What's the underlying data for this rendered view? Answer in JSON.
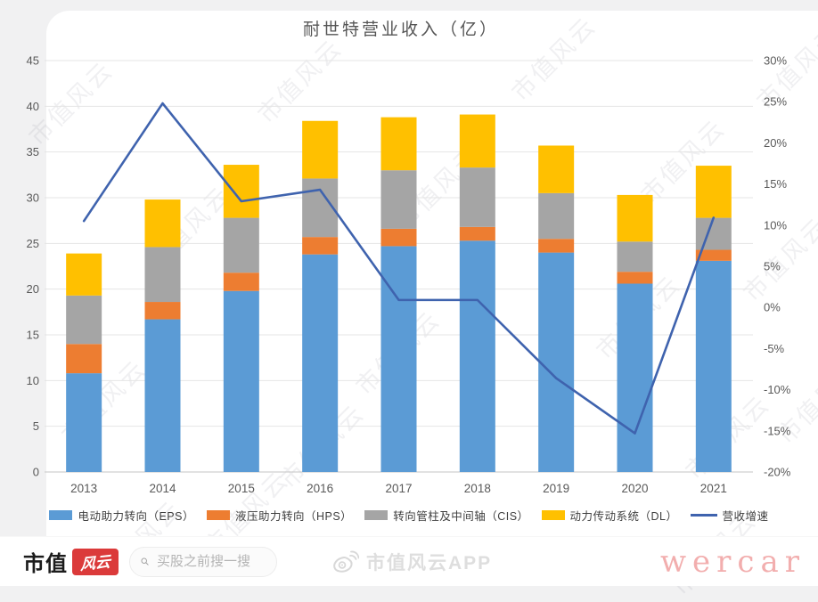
{
  "chart_data": {
    "type": "bar",
    "stacked": true,
    "title": "耐世特营业收入（亿）",
    "categories": [
      "2013",
      "2014",
      "2015",
      "2016",
      "2017",
      "2018",
      "2019",
      "2020",
      "2021"
    ],
    "series": [
      {
        "name": "电动助力转向（EPS）",
        "color": "#5B9BD5",
        "values": [
          10.8,
          16.7,
          19.8,
          23.8,
          24.7,
          25.3,
          24.0,
          20.6,
          23.1
        ]
      },
      {
        "name": "液压助力转向（HPS）",
        "color": "#ED7D31",
        "values": [
          3.2,
          1.9,
          2.0,
          1.9,
          1.9,
          1.5,
          1.5,
          1.3,
          1.2
        ]
      },
      {
        "name": "转向管柱及中间轴（CIS）",
        "color": "#A5A5A5",
        "values": [
          5.3,
          6.0,
          6.0,
          6.4,
          6.4,
          6.5,
          5.0,
          3.3,
          3.5
        ]
      },
      {
        "name": "动力传动系统（DL）",
        "color": "#FFC000",
        "values": [
          4.6,
          5.2,
          5.8,
          6.3,
          5.8,
          5.8,
          5.2,
          5.1,
          5.7
        ]
      }
    ],
    "line_series": {
      "name": "营收增速",
      "color": "#3f63ae",
      "unit": "%",
      "values": [
        10.5,
        24.8,
        12.9,
        14.3,
        0.9,
        0.9,
        -8.6,
        -15.3,
        10.9
      ]
    },
    "left_axis": {
      "min": 0,
      "max": 45,
      "step": 5,
      "ticks": [
        "0",
        "5",
        "10",
        "15",
        "20",
        "25",
        "30",
        "35",
        "40",
        "45"
      ]
    },
    "right_axis": {
      "min": -20,
      "max": 30,
      "step": 5,
      "format": "percent",
      "ticks": [
        "-20%",
        "-15%",
        "-10%",
        "-5%",
        "0%",
        "5%",
        "10%",
        "15%",
        "20%",
        "25%",
        "30%"
      ]
    },
    "grid": true,
    "legend_position": "bottom"
  },
  "watermark": {
    "text": "市值风云"
  },
  "footer": {
    "brand_black": "市值",
    "brand_red": "风云",
    "search_placeholder": "买股之前搜一搜",
    "app_name": "市值风云APP",
    "corner_brand": "wercar"
  }
}
